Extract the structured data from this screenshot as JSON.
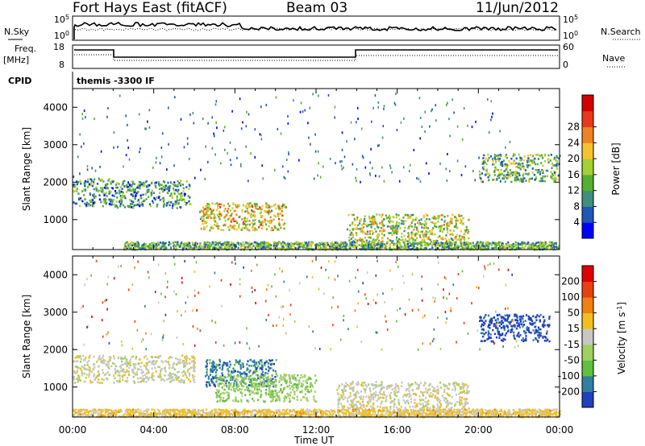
{
  "header": {
    "station": "Fort Hays East (fitACF)",
    "beam": "Beam 03",
    "date": "11/Jun/2012"
  },
  "noise_panel": {
    "left_label": "N.Sky",
    "right_label": "N.Search",
    "left_ticks": [
      "10^5",
      "10^0"
    ],
    "right_ticks": [
      "10^5",
      "10^0"
    ]
  },
  "freq_panel": {
    "left_label": "Freq.",
    "left_unit": "[MHz]",
    "right_label": "Nave",
    "left_ticks": [
      "18",
      "8"
    ],
    "right_ticks": [
      "60",
      "0"
    ]
  },
  "cpid_panel": {
    "label": "CPID",
    "program": "themis -3300 IF"
  },
  "time_axis": {
    "label": "Time UT",
    "ticks": [
      "00:00",
      "04:00",
      "08:00",
      "12:00",
      "16:00",
      "20:00",
      "00:00"
    ]
  },
  "chart_data": [
    {
      "type": "heatmap",
      "name": "Power",
      "xlabel": "Time UT",
      "ylabel": "Slant Range [km]",
      "x_ticks": [
        "00:00",
        "04:00",
        "08:00",
        "12:00",
        "16:00",
        "20:00",
        "00:00"
      ],
      "y_ticks": [
        1000,
        2000,
        3000,
        4000
      ],
      "ylim": [
        200,
        4500
      ],
      "colorbar": {
        "label": "Power [dB]",
        "ticks": [
          4,
          8,
          12,
          16,
          20,
          24,
          28
        ],
        "colors": [
          "#0000ff",
          "#1d57b8",
          "#3f8f7f",
          "#55b030",
          "#a4d033",
          "#f5c32d",
          "#ee8421",
          "#e83a1a",
          "#d40000"
        ]
      },
      "features": [
        {
          "t_start_h": 0.0,
          "t_end_h": 2.0,
          "range_km": 1750,
          "level_db": 18
        },
        {
          "t_start_h": 2.0,
          "t_end_h": 5.8,
          "range_km": 1700,
          "level_db": 18
        },
        {
          "t_start_h": 6.2,
          "t_end_h": 10.5,
          "range_km": 1100,
          "level_db": 26
        },
        {
          "t_start_h": 13.5,
          "t_end_h": 19.5,
          "range_km": 800,
          "level_db": 24
        },
        {
          "t_start_h": 20.0,
          "t_end_h": 24.0,
          "range_km": 2400,
          "level_db": 20
        },
        {
          "t_start_h": 2.5,
          "t_end_h": 24.0,
          "range_km": 300,
          "level_db": 20
        }
      ]
    },
    {
      "type": "heatmap",
      "name": "Velocity",
      "xlabel": "Time UT",
      "ylabel": "Slant Range [km]",
      "x_ticks": [
        "00:00",
        "04:00",
        "08:00",
        "12:00",
        "16:00",
        "20:00",
        "00:00"
      ],
      "y_ticks": [
        1000,
        2000,
        3000,
        4000
      ],
      "ylim": [
        200,
        4500
      ],
      "colorbar": {
        "label": "Velocity [m s^-1]",
        "ticks": [
          200,
          100,
          50,
          15,
          -15,
          -50,
          -100,
          -200
        ],
        "colors": [
          "#2040c0",
          "#3080a0",
          "#60c040",
          "#a0d060",
          "#c8c8c0",
          "#f0c020",
          "#f08010",
          "#e84010",
          "#e00000"
        ]
      },
      "features": [
        {
          "t_start_h": 0.0,
          "t_end_h": 6.0,
          "range_km": 1500,
          "velocity": 0
        },
        {
          "t_start_h": 6.5,
          "t_end_h": 10.0,
          "range_km": 1400,
          "velocity": 150
        },
        {
          "t_start_h": 7.0,
          "t_end_h": 12.0,
          "range_km": 1000,
          "velocity": 60
        },
        {
          "t_start_h": 13.0,
          "t_end_h": 19.5,
          "range_km": 800,
          "velocity": 0
        },
        {
          "t_start_h": 20.0,
          "t_end_h": 23.5,
          "range_km": 2600,
          "velocity": 200
        },
        {
          "t_start_h": 0.0,
          "t_end_h": 24.0,
          "range_km": 300,
          "velocity": -40
        }
      ]
    }
  ]
}
